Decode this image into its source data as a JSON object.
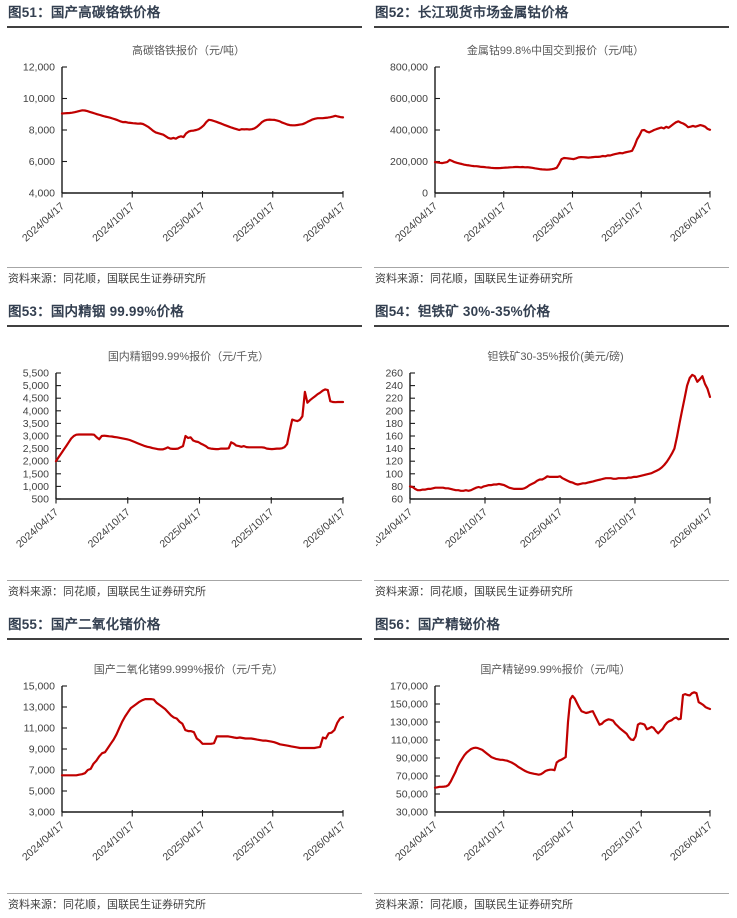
{
  "colors": {
    "line_red": "#C00000",
    "header_text": "#333F50",
    "header_rule": "#404040",
    "axis": "#1a1a1a",
    "tick_label": "#404040",
    "series_title": "#595959",
    "source_text": "#404040",
    "source_rule": "#A6A6A6"
  },
  "chart_data": [
    {
      "id": "fig51",
      "type": "line",
      "figure_title": "图51：国产高碳铬铁价格",
      "series_title": "高碳铬铁报价（元/吨）",
      "source": "资料来源：同花顺，国联民生证券研究所",
      "x_tick_labels": [
        "2024/04/17",
        "2024/10/17",
        "2025/04/17",
        "2025/10/17",
        "2026/04/17"
      ],
      "ylim": [
        4000,
        12000
      ],
      "y_step": 2000,
      "line_color": "#C00000",
      "series": [
        {
          "name": "高碳铬铁报价",
          "values": [
            9050,
            9060,
            9070,
            9080,
            9100,
            9130,
            9170,
            9210,
            9250,
            9240,
            9200,
            9150,
            9100,
            9050,
            9000,
            8950,
            8900,
            8860,
            8820,
            8780,
            8730,
            8680,
            8620,
            8550,
            8500,
            8510,
            8470,
            8450,
            8430,
            8420,
            8400,
            8410,
            8380,
            8300,
            8200,
            8080,
            7950,
            7850,
            7800,
            7750,
            7700,
            7600,
            7500,
            7450,
            7500,
            7450,
            7550,
            7600,
            7550,
            7780,
            7900,
            7950,
            7960,
            8000,
            8050,
            8150,
            8300,
            8500,
            8650,
            8620,
            8570,
            8520,
            8460,
            8400,
            8330,
            8270,
            8210,
            8150,
            8100,
            8050,
            8000,
            8050,
            8040,
            8050,
            8030,
            8050,
            8100,
            8200,
            8350,
            8500,
            8600,
            8650,
            8660,
            8650,
            8640,
            8600,
            8550,
            8470,
            8410,
            8350,
            8310,
            8300,
            8300,
            8320,
            8340,
            8370,
            8430,
            8520,
            8600,
            8670,
            8720,
            8750,
            8750,
            8750,
            8770,
            8790,
            8810,
            8850,
            8900,
            8860,
            8820,
            8800
          ]
        }
      ]
    },
    {
      "id": "fig52",
      "type": "line",
      "figure_title": "图52：长江现货市场金属钴价格",
      "series_title": "金属钴99.8%中国交到报价（元/吨）",
      "source": "资料来源：同花顺，国联民生证券研究所",
      "x_tick_labels": [
        "2024/04/17",
        "2024/10/17",
        "2025/04/17",
        "2025/10/17",
        "2026/04/17"
      ],
      "ylim": [
        0,
        800000
      ],
      "y_step": 200000,
      "line_color": "#C00000",
      "series": [
        {
          "name": "金属钴99.8%中国交到报价",
          "values": [
            196000,
            194000,
            192000,
            190000,
            193000,
            196000,
            210000,
            204000,
            196000,
            192000,
            188000,
            184000,
            180000,
            177000,
            175000,
            173000,
            171000,
            170000,
            168000,
            166000,
            165000,
            163000,
            162000,
            160000,
            159000,
            158000,
            158000,
            159000,
            160000,
            161000,
            162000,
            163000,
            164000,
            165000,
            165000,
            164000,
            165000,
            163000,
            164000,
            162000,
            160000,
            157000,
            154000,
            152000,
            150000,
            149000,
            148000,
            149000,
            151000,
            154000,
            160000,
            185000,
            215000,
            222000,
            221000,
            219000,
            217000,
            215000,
            220000,
            226000,
            228000,
            227000,
            226000,
            225000,
            226000,
            228000,
            230000,
            229000,
            231000,
            235000,
            233000,
            239000,
            238000,
            243000,
            247000,
            250000,
            254000,
            252000,
            257000,
            261000,
            264000,
            268000,
            300000,
            340000,
            365000,
            398000,
            400000,
            390000,
            385000,
            392000,
            400000,
            406000,
            411000,
            416000,
            410000,
            420000,
            414000,
            426000,
            438000,
            449000,
            455000,
            447000,
            441000,
            432000,
            418000,
            421000,
            426000,
            421000,
            426000,
            431000,
            427000,
            421000,
            407000,
            401000
          ]
        }
      ]
    },
    {
      "id": "fig53",
      "type": "line",
      "figure_title": "图53：国内精铟 99.99%价格",
      "series_title": "国内精铟99.99%报价（元/千克）",
      "source": "资料来源：同花顺，国联民生证券研究所",
      "x_tick_labels": [
        "2024/04/17",
        "2024/10/17",
        "2025/04/17",
        "2025/10/17",
        "2026/04/17"
      ],
      "ylim": [
        500,
        5500
      ],
      "y_step": 500,
      "line_color": "#C00000",
      "series": [
        {
          "name": "国内精铟99.99%报价",
          "values": [
            2000,
            2150,
            2300,
            2450,
            2600,
            2750,
            2900,
            3000,
            3050,
            3060,
            3060,
            3060,
            3060,
            3060,
            3060,
            3050,
            2950,
            2870,
            3000,
            3010,
            3000,
            2990,
            2980,
            2960,
            2950,
            2930,
            2910,
            2890,
            2870,
            2840,
            2800,
            2760,
            2720,
            2680,
            2640,
            2600,
            2570,
            2550,
            2520,
            2500,
            2480,
            2470,
            2470,
            2500,
            2550,
            2500,
            2490,
            2490,
            2500,
            2550,
            2600,
            3000,
            2920,
            2950,
            2820,
            2780,
            2760,
            2700,
            2650,
            2600,
            2520,
            2500,
            2490,
            2480,
            2480,
            2500,
            2500,
            2500,
            2510,
            2750,
            2700,
            2620,
            2600,
            2570,
            2600,
            2560,
            2550,
            2550,
            2550,
            2550,
            2550,
            2550,
            2540,
            2500,
            2490,
            2480,
            2490,
            2500,
            2500,
            2510,
            2560,
            2680,
            3200,
            3650,
            3620,
            3590,
            3640,
            3780,
            4750,
            4320,
            4420,
            4500,
            4580,
            4660,
            4720,
            4800,
            4850,
            4820,
            4380,
            4350,
            4340,
            4350,
            4350,
            4350
          ]
        }
      ]
    },
    {
      "id": "fig54",
      "type": "line",
      "figure_title": "图54：钽铁矿 30%-35%价格",
      "series_title": "钽铁矿30-35%报价(美元/磅)",
      "source": "资料来源：同花顺，国联民生证券研究所",
      "x_tick_labels": [
        "2024/04/17",
        "2024/10/17",
        "2025/04/17",
        "2025/10/17",
        "2026/04/17"
      ],
      "ylim": [
        60,
        260
      ],
      "y_step": 20,
      "line_color": "#C00000",
      "series": [
        {
          "name": "钽铁矿30-35%报价",
          "values": [
            80,
            79,
            76,
            74,
            74,
            75,
            75,
            76,
            76,
            77,
            78,
            78,
            78,
            78,
            77,
            77,
            76,
            75,
            74,
            74,
            73,
            73,
            74,
            73,
            74,
            76,
            78,
            79,
            78,
            80,
            81,
            82,
            82,
            83,
            83,
            84,
            83,
            82,
            80,
            78,
            77,
            76,
            76,
            76,
            76,
            77,
            79,
            82,
            84,
            86,
            89,
            91,
            91,
            93,
            96,
            95,
            95,
            95,
            95,
            96,
            93,
            91,
            89,
            87,
            86,
            84,
            83,
            84,
            85,
            85,
            86,
            87,
            88,
            89,
            90,
            91,
            92,
            93,
            93,
            93,
            92,
            92,
            93,
            93,
            93,
            93,
            94,
            94,
            95,
            95,
            96,
            97,
            98,
            99,
            100,
            101,
            103,
            105,
            107,
            110,
            114,
            119,
            125,
            132,
            140,
            158,
            180,
            200,
            220,
            240,
            252,
            257,
            255,
            246,
            250,
            255,
            243,
            235,
            222
          ]
        }
      ]
    },
    {
      "id": "fig55",
      "type": "line",
      "figure_title": "图55：国产二氧化锗价格",
      "series_title": "国产二氧化锗99.999%报价（元/千克）",
      "source": "资料来源：同花顺，国联民生证券研究所",
      "x_tick_labels": [
        "2024/04/17",
        "2024/10/17",
        "2025/04/17",
        "2025/10/17",
        "2026/04/17"
      ],
      "ylim": [
        3000,
        15000
      ],
      "y_step": 2000,
      "line_color": "#C00000",
      "series": [
        {
          "name": "国产二氧化锗99.999%报价",
          "values": [
            6500,
            6500,
            6500,
            6500,
            6500,
            6500,
            6550,
            6600,
            6700,
            7000,
            7100,
            7600,
            7900,
            8300,
            8600,
            8700,
            9100,
            9500,
            9900,
            10400,
            11000,
            11600,
            12100,
            12500,
            12900,
            13100,
            13300,
            13500,
            13650,
            13750,
            13750,
            13750,
            13700,
            13400,
            13200,
            13000,
            12800,
            12500,
            12200,
            12000,
            11900,
            11600,
            11400,
            10800,
            10700,
            10700,
            10600,
            10000,
            9800,
            9500,
            9500,
            9500,
            9500,
            9550,
            10200,
            10200,
            10200,
            10200,
            10200,
            10150,
            10100,
            10050,
            10100,
            10050,
            10000,
            10000,
            10000,
            9950,
            9900,
            9850,
            9800,
            9800,
            9750,
            9700,
            9650,
            9550,
            9450,
            9400,
            9350,
            9300,
            9250,
            9200,
            9150,
            9100,
            9100,
            9100,
            9100,
            9100,
            9100,
            9150,
            9200,
            10100,
            10000,
            10500,
            10550,
            10800,
            11500,
            11900,
            12050
          ]
        }
      ]
    },
    {
      "id": "fig56",
      "type": "line",
      "figure_title": "图56：国产精铋价格",
      "series_title": "国产精铋99.99%报价（元/吨）",
      "source": "资料来源：同花顺，国联民生证券研究所",
      "x_tick_labels": [
        "2024/04/17",
        "2024/10/17",
        "2025/04/17",
        "2025/10/17",
        "2026/04/17"
      ],
      "ylim": [
        30000,
        170000
      ],
      "y_step": 20000,
      "line_color": "#C00000",
      "series": [
        {
          "name": "国产精铋99.99%报价",
          "values": [
            57000,
            57500,
            58000,
            58000,
            58200,
            58500,
            60000,
            64000,
            69000,
            74000,
            80000,
            85000,
            89000,
            93000,
            96000,
            98000,
            100000,
            101000,
            101500,
            101000,
            100000,
            99000,
            97000,
            95000,
            93000,
            91000,
            90000,
            89000,
            88500,
            88000,
            88000,
            87500,
            87000,
            86000,
            85000,
            83500,
            82000,
            80000,
            78500,
            77000,
            75500,
            74500,
            73500,
            73000,
            72500,
            72000,
            71500,
            72000,
            73500,
            75500,
            76500,
            77000,
            77000,
            76500,
            85000,
            87000,
            88000,
            89500,
            91000,
            130000,
            155000,
            159000,
            156000,
            151000,
            146000,
            142000,
            141000,
            140000,
            140500,
            141500,
            142000,
            137000,
            132000,
            127000,
            128000,
            130500,
            132000,
            133000,
            132500,
            131500,
            128000,
            125500,
            123000,
            121000,
            119000,
            117000,
            113000,
            110500,
            110000,
            114000,
            127000,
            128500,
            128000,
            127000,
            122000,
            123000,
            124500,
            123500,
            120000,
            117500,
            120000,
            122500,
            126500,
            129500,
            131000,
            132000,
            134000,
            135000,
            133000,
            133500,
            160000,
            161000,
            160000,
            159500,
            162000,
            163000,
            162000,
            152000,
            150500,
            149000,
            146500,
            145500,
            144500
          ]
        }
      ]
    }
  ]
}
